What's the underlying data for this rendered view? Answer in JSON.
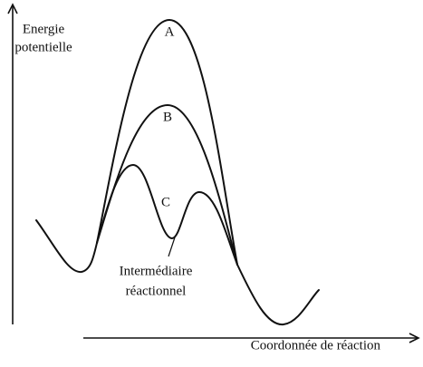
{
  "y_axis_label": [
    "Energie",
    "potentielle"
  ],
  "x_axis_label": "Coordonnée de réaction",
  "curves": [
    {
      "label": "A"
    },
    {
      "label": "B"
    },
    {
      "label": "C"
    }
  ],
  "annotation": [
    "Intermédiaire",
    "réactionnel"
  ]
}
